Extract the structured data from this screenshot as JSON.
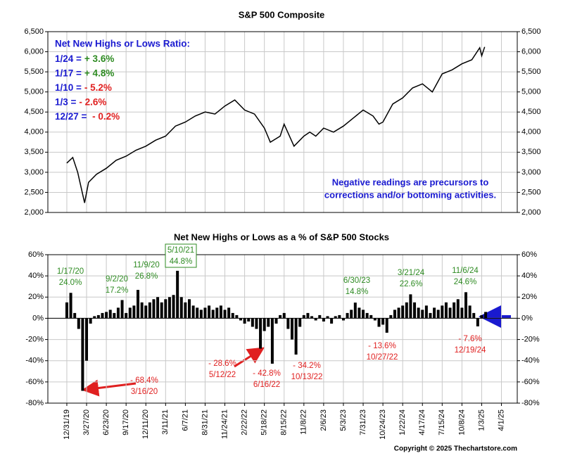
{
  "chart_data": [
    {
      "type": "line",
      "title": "S&P 500 Composite",
      "color": "#000000",
      "ratio_title": "Net New Highs or Lows Ratio:",
      "ratio_lines": [
        {
          "date": "1/24 =",
          "value": "+ 3.6%"
        },
        {
          "date": "1/17 =",
          "value": "+ 4.8%"
        },
        {
          "date": "1/10 =",
          "value": "- 5.2%"
        },
        {
          "date": "1/3 =",
          "value": "- 2.6%"
        },
        {
          "date": "12/27 =",
          "value": " - 0.2%"
        }
      ],
      "note": [
        "Negative readings are precursors to",
        "corrections and/or bottoming activities."
      ],
      "xlim": [
        -0.96,
        22.8
      ],
      "ylim": [
        2000,
        6500
      ],
      "grid": true,
      "yticks": [
        {
          "value": 2000,
          "label": "2,000"
        },
        {
          "value": 2500,
          "label": "2,500"
        },
        {
          "value": 3000,
          "label": "3,000"
        },
        {
          "value": 3500,
          "label": "3,500"
        },
        {
          "value": 4000,
          "label": "4,000"
        },
        {
          "value": 4500,
          "label": "4,500"
        },
        {
          "value": 5000,
          "label": "5,000"
        },
        {
          "value": 5500,
          "label": "5,500"
        },
        {
          "value": 6000,
          "label": "6,000"
        },
        {
          "value": 6500,
          "label": "6,500"
        }
      ],
      "x": [
        0,
        0.3,
        0.55,
        0.9,
        1.1,
        1.5,
        2,
        2.5,
        3,
        3.5,
        4,
        4.5,
        5,
        5.5,
        6,
        6.5,
        7,
        7.5,
        8,
        8.5,
        9,
        9.5,
        10,
        10.3,
        10.8,
        11,
        11.5,
        12,
        12.3,
        12.6,
        13,
        13.5,
        14,
        14.5,
        15,
        15.5,
        15.8,
        16,
        16.5,
        17,
        17.5,
        18,
        18.5,
        19,
        19.5,
        20,
        20.5,
        20.9,
        21.0,
        21.15
      ],
      "values": [
        3230,
        3370,
        3000,
        2240,
        2750,
        2950,
        3100,
        3300,
        3400,
        3550,
        3650,
        3800,
        3900,
        4150,
        4250,
        4400,
        4500,
        4450,
        4650,
        4800,
        4550,
        4450,
        4100,
        3750,
        3900,
        4200,
        3650,
        3900,
        4000,
        3900,
        4100,
        4000,
        4150,
        4350,
        4550,
        4400,
        4200,
        4250,
        4700,
        4850,
        5100,
        5200,
        5000,
        5450,
        5550,
        5700,
        5800,
        6100,
        5900,
        6120
      ]
    },
    {
      "type": "bar",
      "title": "Net New Highs or Lows as a % of S&P 500 Stocks",
      "color": "#000000",
      "xlim": [
        -0.96,
        22.8
      ],
      "ylim": [
        -80,
        60
      ],
      "grid": true,
      "yticks": [
        {
          "value": -80,
          "label": "-80%"
        },
        {
          "value": -60,
          "label": "-60%"
        },
        {
          "value": -40,
          "label": "-40%"
        },
        {
          "value": -20,
          "label": "-20%"
        },
        {
          "value": 0,
          "label": "0%"
        },
        {
          "value": 20,
          "label": "20%"
        },
        {
          "value": 40,
          "label": "40%"
        },
        {
          "value": 60,
          "label": "60%"
        }
      ],
      "xticks": [
        {
          "value": 0,
          "label": "12/31/19"
        },
        {
          "value": 1,
          "label": "3/27/20"
        },
        {
          "value": 2,
          "label": "6/23/20"
        },
        {
          "value": 3,
          "label": "9/17/20"
        },
        {
          "value": 4,
          "label": "12/11/20"
        },
        {
          "value": 5,
          "label": "3/11/21"
        },
        {
          "value": 6,
          "label": "6/7/21"
        },
        {
          "value": 7,
          "label": "8/31/21"
        },
        {
          "value": 8,
          "label": "11/24/21"
        },
        {
          "value": 9,
          "label": "2/22/22"
        },
        {
          "value": 10,
          "label": "5/18/22"
        },
        {
          "value": 11,
          "label": "8/15/22"
        },
        {
          "value": 12,
          "label": "11/8/22"
        },
        {
          "value": 13,
          "label": "2/6/23"
        },
        {
          "value": 14,
          "label": "5/3/23"
        },
        {
          "value": 15,
          "label": "7/31/23"
        },
        {
          "value": 16,
          "label": "10/24/23"
        },
        {
          "value": 17,
          "label": "1/22/24"
        },
        {
          "value": 18,
          "label": "4/17/24"
        },
        {
          "value": 19,
          "label": "7/15/24"
        },
        {
          "value": 20,
          "label": "10/8/24"
        },
        {
          "value": 21,
          "label": "1/3/25"
        },
        {
          "value": 22,
          "label": "4/1/25"
        }
      ],
      "x": [
        0,
        0.2,
        0.4,
        0.6,
        0.8,
        1.0,
        1.2,
        1.4,
        1.6,
        1.8,
        2.0,
        2.2,
        2.4,
        2.6,
        2.8,
        3.0,
        3.2,
        3.4,
        3.6,
        3.8,
        4.0,
        4.2,
        4.4,
        4.6,
        4.8,
        5.0,
        5.2,
        5.4,
        5.6,
        5.8,
        6.0,
        6.2,
        6.4,
        6.6,
        6.8,
        7.0,
        7.2,
        7.4,
        7.6,
        7.8,
        8.0,
        8.2,
        8.4,
        8.6,
        8.8,
        9.0,
        9.2,
        9.4,
        9.6,
        9.8,
        10.0,
        10.2,
        10.4,
        10.6,
        10.8,
        11.0,
        11.2,
        11.4,
        11.6,
        11.8,
        12.0,
        12.2,
        12.4,
        12.6,
        12.8,
        13.0,
        13.2,
        13.4,
        13.6,
        13.8,
        14.0,
        14.2,
        14.4,
        14.6,
        14.8,
        15.0,
        15.2,
        15.4,
        15.6,
        15.8,
        16.0,
        16.2,
        16.4,
        16.6,
        16.8,
        17.0,
        17.2,
        17.4,
        17.6,
        17.8,
        18.0,
        18.2,
        18.4,
        18.6,
        18.8,
        19.0,
        19.2,
        19.4,
        19.6,
        19.8,
        20.0,
        20.2,
        20.4,
        20.6,
        20.8,
        21.0,
        21.2
      ],
      "values": [
        15,
        24,
        5,
        -10,
        -68.4,
        -40,
        -5,
        2,
        3,
        5,
        6,
        8,
        5,
        10,
        17.2,
        5,
        10,
        12,
        26.8,
        15,
        12,
        15,
        18,
        20,
        15,
        18,
        20,
        22,
        44.8,
        20,
        15,
        18,
        12,
        10,
        8,
        10,
        12,
        8,
        10,
        12,
        8,
        10,
        5,
        3,
        -2,
        -5,
        -3,
        -8,
        -10,
        -28.6,
        -12,
        -8,
        -42.8,
        -5,
        3,
        5,
        -10,
        -20,
        -34.2,
        -8,
        3,
        5,
        2,
        -2,
        3,
        -3,
        2,
        -5,
        2,
        3,
        -2,
        5,
        8,
        14.8,
        10,
        8,
        5,
        3,
        -2,
        -8,
        -6,
        -13.6,
        3,
        8,
        10,
        12,
        15,
        22.6,
        15,
        10,
        8,
        12,
        5,
        10,
        8,
        12,
        15,
        10,
        15,
        18,
        10,
        24.6,
        12,
        5,
        -7.6,
        3,
        6
      ],
      "annotations": [
        {
          "lines": [
            "1/17/20",
            "24.0%"
          ]
        },
        {
          "lines": [
            "9/2/20",
            "17.2%"
          ]
        },
        {
          "lines": [
            "11/9/20",
            "26.8%"
          ]
        },
        {
          "lines": [
            "5/10/21",
            "44.8%"
          ]
        },
        {
          "lines": [
            "6/30/23",
            "14.8%"
          ]
        },
        {
          "lines": [
            "3/21/24",
            "22.6%"
          ]
        },
        {
          "lines": [
            "11/6/24",
            "24.6%"
          ]
        },
        {
          "lines": [
            "- 68.4%",
            "3/16/20"
          ]
        },
        {
          "lines": [
            "- 28.6%",
            "5/12/22"
          ]
        },
        {
          "lines": [
            "- 42.8%",
            "6/16/22"
          ]
        },
        {
          "lines": [
            "- 34.2%",
            "10/13/22"
          ]
        },
        {
          "lines": [
            "- 13.6%",
            "10/27/22"
          ]
        },
        {
          "lines": [
            "- 7.6%",
            "12/19/24"
          ]
        }
      ]
    }
  ],
  "copyright": "Copyright © 2025 Thechartstore.com"
}
